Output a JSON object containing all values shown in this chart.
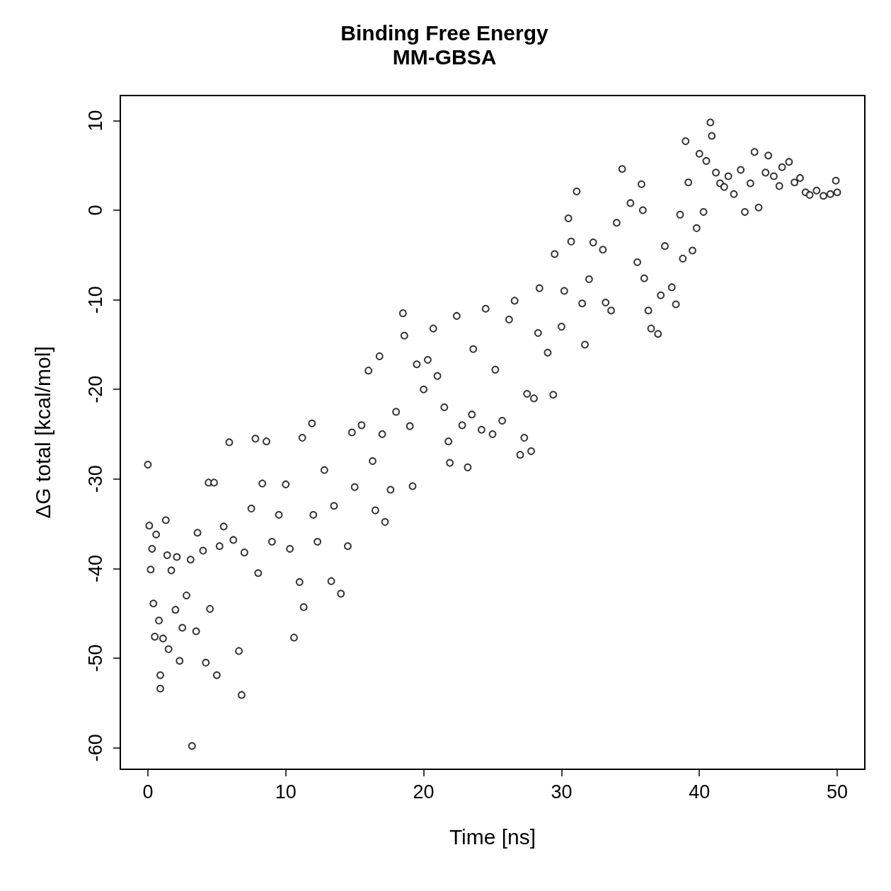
{
  "chart_data": {
    "type": "scatter",
    "title": "Binding Free Energy",
    "subtitle": "MM-GBSA",
    "xlabel": "Time [ns]",
    "ylabel": "ΔG total [kcal/mol]",
    "x": [
      0,
      0.1,
      0.2,
      0.3,
      0.4,
      0.5,
      0.6,
      0.8,
      0.9,
      0.9,
      1.1,
      1.3,
      1.4,
      1.5,
      1.7,
      2,
      2.1,
      2.3,
      2.5,
      2.8,
      3.1,
      3.2,
      3.5,
      3.6,
      4,
      4.2,
      4.4,
      4.5,
      4.8,
      5,
      5.2,
      5.5,
      5.9,
      6.2,
      6.6,
      6.8,
      7,
      7.5,
      7.8,
      8,
      8.3,
      8.6,
      9,
      9.5,
      10,
      10.3,
      10.6,
      11,
      11.2,
      11.3,
      11.9,
      12,
      12.3,
      12.8,
      13.3,
      13.5,
      14,
      14.5,
      14.8,
      15,
      15.5,
      16,
      16.3,
      16.5,
      16.8,
      17,
      17.2,
      17.6,
      18,
      18.5,
      18.6,
      19,
      19.2,
      19.5,
      20,
      20.3,
      20.7,
      21,
      21.5,
      21.8,
      21.9,
      22.4,
      22.8,
      23.2,
      23.5,
      23.6,
      24.2,
      24.5,
      25,
      25.2,
      25.7,
      26.2,
      26.6,
      27,
      27.3,
      27.5,
      27.8,
      28,
      28.3,
      28.4,
      29,
      29.4,
      29.5,
      30,
      30.2,
      30.5,
      30.7,
      31.1,
      31.5,
      31.7,
      32,
      32.3,
      33,
      33.2,
      33.6,
      34,
      34.4,
      35,
      35.5,
      35.8,
      35.9,
      36,
      36.3,
      36.5,
      37,
      37.2,
      37.5,
      38,
      38.3,
      38.6,
      38.8,
      39,
      39.2,
      39.5,
      39.8,
      40,
      40.3,
      40.5,
      40.8,
      40.9,
      41.2,
      41.5,
      41.8,
      42.1,
      42.5,
      43,
      43.3,
      43.7,
      44,
      44.3,
      44.8,
      45,
      45.4,
      45.8,
      46,
      46.5,
      46.9,
      47.3,
      47.7,
      48,
      48.5,
      49,
      49.5,
      49.9,
      50
    ],
    "values": [
      -28.4,
      -35.2,
      -40.1,
      -37.8,
      -43.9,
      -47.6,
      -36.2,
      -45.8,
      -51.9,
      -53.4,
      -47.8,
      -34.6,
      -38.5,
      -49,
      -40.2,
      -44.6,
      -38.7,
      -50.3,
      -46.6,
      -43,
      -39,
      -59.8,
      -47,
      -36,
      -38,
      -50.5,
      -30.4,
      -44.5,
      -30.4,
      -51.9,
      -37.5,
      -35.3,
      -25.9,
      -36.8,
      -49.2,
      -54.1,
      -38.2,
      -33.3,
      -25.5,
      -40.5,
      -30.5,
      -25.8,
      -37,
      -34,
      -30.6,
      -37.8,
      -47.7,
      -41.5,
      -25.4,
      -44.3,
      -23.8,
      -34,
      -37,
      -29,
      -41.4,
      -33,
      -42.8,
      -37.5,
      -24.8,
      -30.9,
      -24,
      -17.9,
      -28,
      -33.5,
      -16.3,
      -25,
      -34.8,
      -31.2,
      -22.5,
      -11.5,
      -14,
      -24.1,
      -30.8,
      -17.2,
      -20,
      -16.7,
      -13.2,
      -18.5,
      -22,
      -25.8,
      -28.2,
      -11.8,
      -24,
      -28.7,
      -22.8,
      -15.5,
      -24.5,
      -11,
      -25,
      -17.8,
      -23.5,
      -12.2,
      -10.1,
      -27.3,
      -25.4,
      -20.5,
      -26.9,
      -21,
      -13.7,
      -8.7,
      -15.9,
      -20.6,
      -4.9,
      -13,
      -9,
      -0.9,
      -3.5,
      2.1,
      -10.4,
      -15,
      -7.7,
      -3.6,
      -4.4,
      -10.3,
      -11.2,
      -1.4,
      4.6,
      0.8,
      -5.8,
      2.9,
      0,
      -7.6,
      -11.2,
      -13.2,
      -13.8,
      -9.5,
      -4,
      -8.6,
      -10.5,
      -0.5,
      -5.4,
      7.7,
      3.1,
      -4.5,
      -2,
      6.3,
      -0.2,
      5.5,
      9.8,
      8.3,
      4.2,
      3,
      2.6,
      3.8,
      1.8,
      4.5,
      -0.2,
      3,
      6.5,
      0.3,
      4.2,
      6.1,
      3.8,
      2.7,
      4.8,
      5.4,
      3.1,
      3.6,
      2,
      1.7,
      2.2,
      1.6,
      1.8,
      3.3,
      2
    ],
    "color": "#000000",
    "marker": "circle",
    "grid": false,
    "xlim": [
      -2,
      52
    ],
    "ylim": [
      -62.4,
      12.8
    ],
    "xticks": [
      0,
      10,
      20,
      30,
      40,
      50
    ],
    "yticks": [
      -60,
      -50,
      -40,
      -30,
      -20,
      -10,
      0,
      10
    ]
  }
}
